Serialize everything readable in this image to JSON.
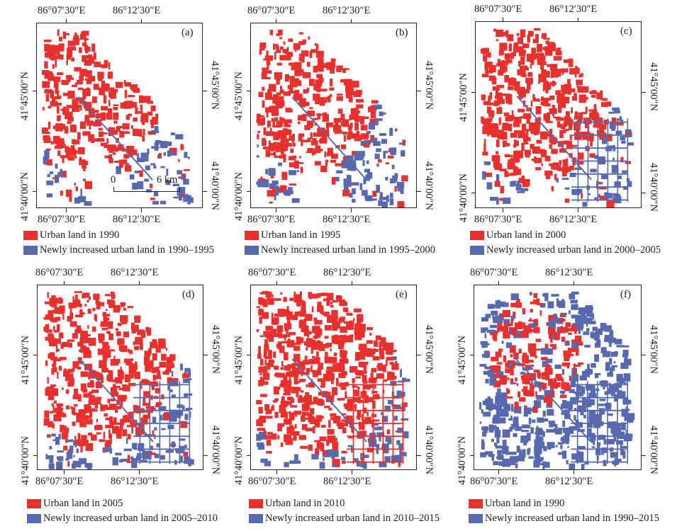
{
  "colors": {
    "urban": "#e8302e",
    "newly": "#5868ae",
    "frame": "#222222"
  },
  "axis_labels": {
    "lon_1": "86°07′30″E",
    "lon_2": "86°12′30″E",
    "lat_1": "41°45′00″N",
    "lat_2": "41°40′00″N"
  },
  "scale_bar": {
    "start": "0",
    "end": "6 km"
  },
  "panels": [
    {
      "id": "a",
      "label": "(a)",
      "legend_urban": "Urban land in 1990",
      "legend_newly": "Newly increased urban land in 1990–1995",
      "urban_share": 0.55,
      "newly_share": 0.3
    },
    {
      "id": "b",
      "label": "(b)",
      "legend_urban": "Urban land in 1995",
      "legend_newly": "Newly increased urban land in 1995–2000",
      "urban_share": 0.55,
      "newly_share": 0.45
    },
    {
      "id": "c",
      "label": "(c)",
      "legend_urban": "Urban land in 2000",
      "legend_newly": "Newly increased urban land in 2000–2005",
      "urban_share": 0.7,
      "newly_share": 0.35
    },
    {
      "id": "d",
      "label": "(d)",
      "legend_urban": "Urban land in 2005",
      "legend_newly": "Newly increased urban land in 2005–2010",
      "urban_share": 0.7,
      "newly_share": 0.45
    },
    {
      "id": "e",
      "label": "(e)",
      "legend_urban": "Urban land in 2010",
      "legend_newly": "Newly increased urban land in 2010–2015",
      "urban_share": 0.8,
      "newly_share": 0.4
    },
    {
      "id": "f",
      "label": "(f)",
      "legend_urban": "Urban land in 1990",
      "legend_newly": "Newly increased urban land in 1990–2015",
      "urban_share": 0.25,
      "newly_share": 0.85
    }
  ]
}
